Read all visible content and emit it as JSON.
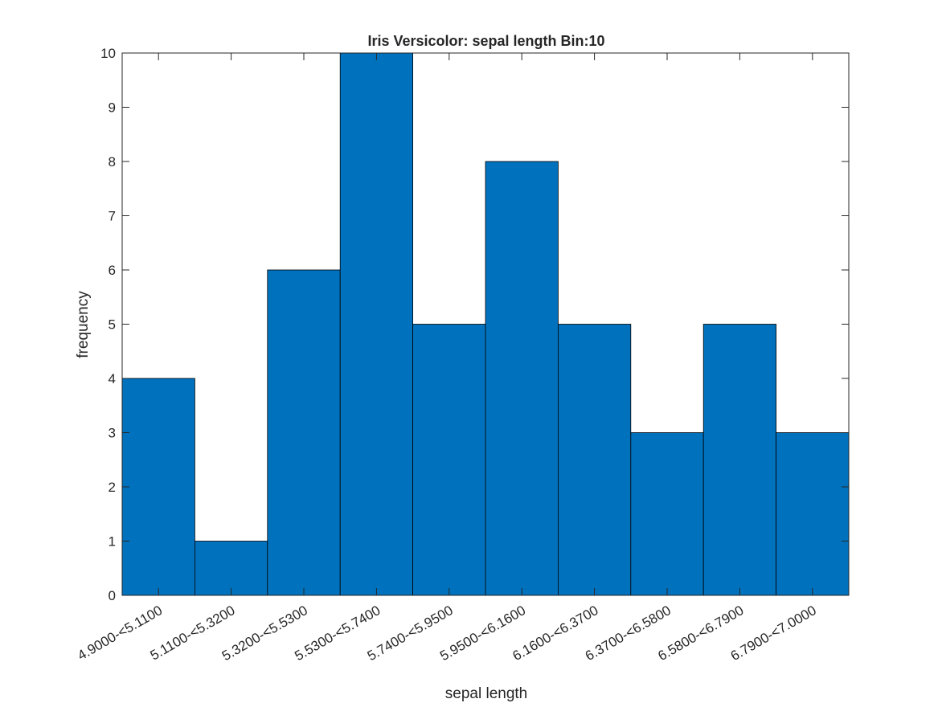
{
  "chart_data": {
    "type": "bar",
    "title": "Iris Versicolor: sepal length Bin:10",
    "xlabel": "sepal length",
    "ylabel": "frequency",
    "categories": [
      "4.9000-<5.1100",
      "5.1100-<5.3200",
      "5.3200-<5.5300",
      "5.5300-<5.7400",
      "5.7400-<5.9500",
      "5.9500-<6.1600",
      "6.1600-<6.3700",
      "6.3700-<6.5800",
      "6.5800-<6.7900",
      "6.7900-<7.0000"
    ],
    "values": [
      4,
      1,
      6,
      10,
      5,
      8,
      5,
      3,
      5,
      3
    ],
    "ylim": [
      0,
      10
    ],
    "yticks": [
      0,
      1,
      2,
      3,
      4,
      5,
      6,
      7,
      8,
      9,
      10
    ],
    "grid": false,
    "bar_color": "#0072BD",
    "edge_color": "#000000"
  }
}
